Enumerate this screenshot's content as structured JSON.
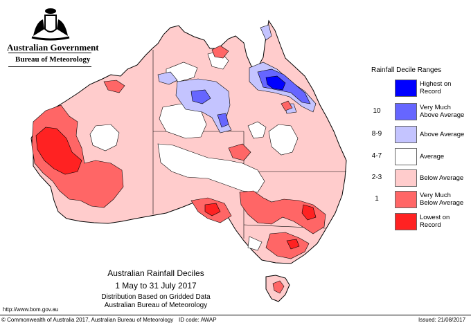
{
  "header": {
    "government": "Australian Government",
    "bureau": "Bureau of Meteorology"
  },
  "legend": {
    "title": "Rainfall Decile Ranges",
    "items": [
      {
        "range": "",
        "label": "Highest on Record",
        "color": "#0000ff"
      },
      {
        "range": "10",
        "label": "Very Much Above Average",
        "color": "#6666ff"
      },
      {
        "range": "8-9",
        "label": "Above Average",
        "color": "#c4c4ff"
      },
      {
        "range": "4-7",
        "label": "Average",
        "color": "#ffffff"
      },
      {
        "range": "2-3",
        "label": "Below Average",
        "color": "#ffcccc"
      },
      {
        "range": "1",
        "label": "Very Much Below Average",
        "color": "#ff6666"
      },
      {
        "range": "",
        "label": "Lowest on Record",
        "color": "#ff2222"
      }
    ]
  },
  "caption": {
    "title": "Australian Rainfall Deciles",
    "dates": "1 May to 31 July 2017",
    "line3": "Distribution Based on Gridded Data",
    "line4": "Australian Bureau of Meteorology"
  },
  "footer": {
    "url": "http://www.bom.gov.au",
    "copyright": "© Commonwealth of Australia 2017, Australian Bureau of Meteorology",
    "id_code": "ID code: AWAP",
    "issued": "Issued: 21/08/2017"
  },
  "map": {
    "region": "Australia",
    "colors": {
      "below": "#ffcccc",
      "very_much_below": "#ff6666",
      "lowest": "#ff2222",
      "above": "#c4c4ff",
      "very_much_above": "#6666ff",
      "highest": "#0000ff",
      "average": "#ffffff",
      "border": "#000000"
    }
  }
}
